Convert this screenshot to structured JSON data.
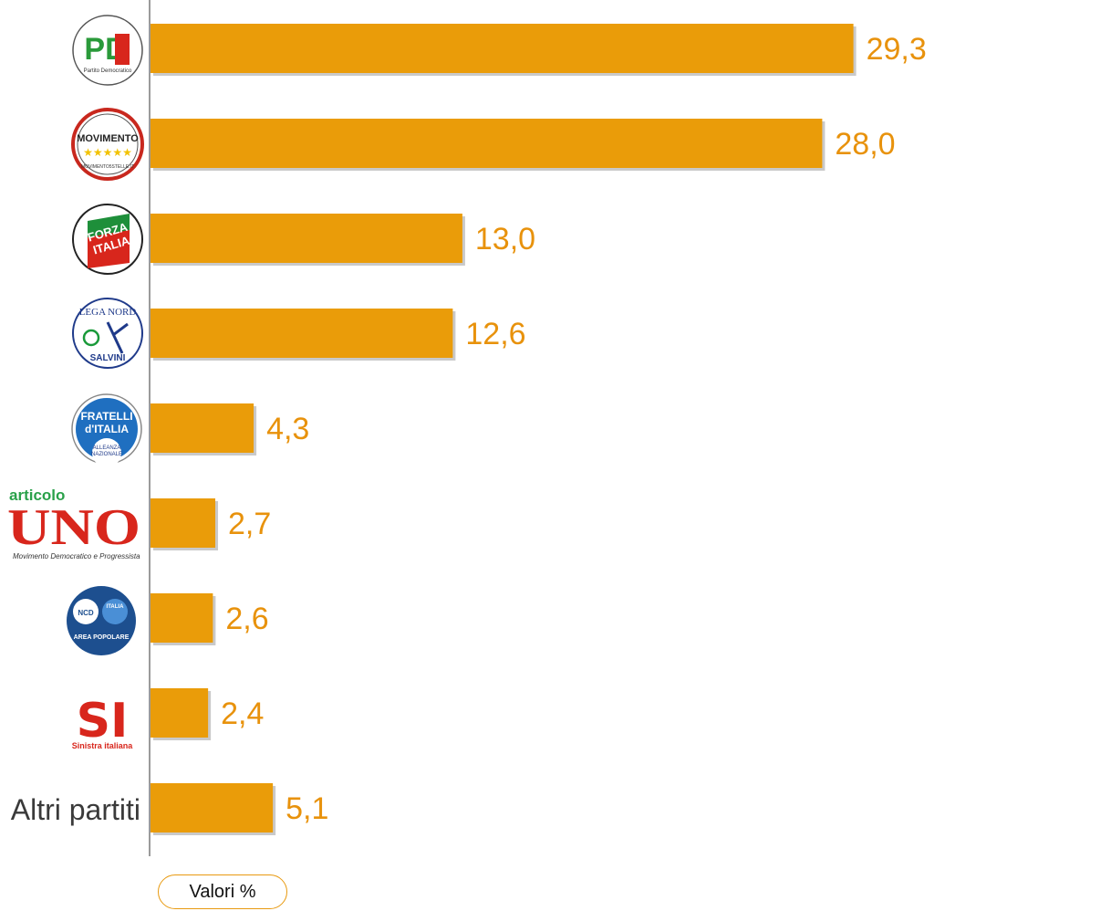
{
  "colors": {
    "bar": "#ea9c09",
    "bar_shadow": "#c9c9c9",
    "value_text": "#e8920c",
    "axis": "#7a7a7a"
  },
  "chart_data": {
    "type": "bar",
    "orientation": "horizontal",
    "categories": [
      "PD",
      "Movimento 5 Stelle",
      "Forza Italia",
      "Lega Nord Salvini",
      "Fratelli d'Italia",
      "Articolo Uno",
      "Area Popolare",
      "Sinistra Italiana",
      "Altri partiti"
    ],
    "category_logos": [
      "pd-logo",
      "movimento-5-stelle-logo",
      "forza-italia-logo",
      "lega-nord-logo",
      "fratelli-italia-logo",
      "articolo-uno-logo",
      "area-popolare-logo",
      "sinistra-italiana-logo",
      null
    ],
    "values": [
      29.3,
      28.0,
      13.0,
      12.6,
      4.3,
      2.7,
      2.6,
      2.4,
      5.1
    ],
    "value_labels": [
      "29,3",
      "28,0",
      "13,0",
      "12,6",
      "4,3",
      "2,7",
      "2,6",
      "2,4",
      "5,1"
    ],
    "grid": false,
    "legend": {
      "label": "Valori %"
    }
  },
  "logo_text": {
    "pd": "PD",
    "pd_sub": "Partito Democratico",
    "m5s": "MOVIMENTO",
    "m5s_stars": "★★★★★",
    "m5s_sub": "MOVIMENTO5STELLE.IT",
    "fi_1": "FORZA",
    "fi_2": "ITALIA",
    "lega_top": "LEGA NORD",
    "lega_bottom": "SALVINI",
    "fdi_1": "FRATELLI",
    "fdi_2": "d'ITALIA",
    "fdi_3": "ALLEANZA",
    "fdi_4": "NAZIONALE",
    "au_1": "articolo",
    "au_2": "UNO",
    "au_3": "Movimento Democratico e Progressista",
    "ap_ncd": "NCD",
    "ap_italia": "ITALIA",
    "ap_bottom": "AREA POPOLARE",
    "si_mark": "SI",
    "si_sub": "Sinistra italiana"
  }
}
